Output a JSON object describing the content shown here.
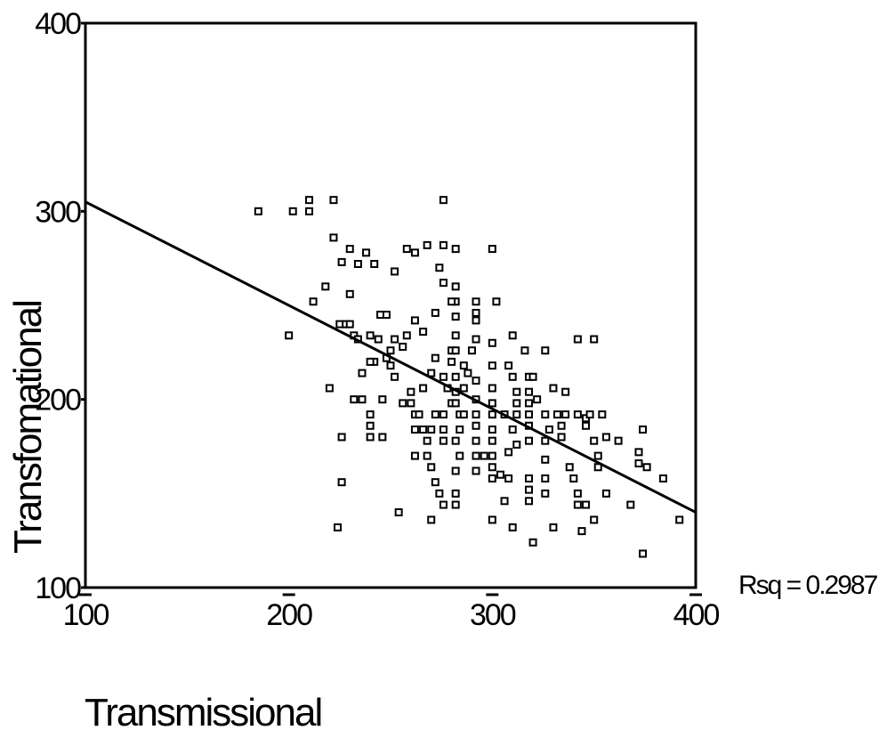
{
  "chart_data": {
    "type": "scatter",
    "title": "",
    "xlabel": "Transmissional",
    "ylabel": "Transfomational",
    "xlim": [
      100,
      400
    ],
    "ylim": [
      100,
      400
    ],
    "x_ticks": [
      100,
      200,
      300,
      400
    ],
    "y_ticks": [
      100,
      200,
      300,
      400
    ],
    "grid": false,
    "annotation": "Rsq = 0.2987",
    "fit_line": {
      "x": [
        100,
        400
      ],
      "y": [
        305,
        140
      ]
    },
    "points": [
      [
        185,
        300
      ],
      [
        202,
        300
      ],
      [
        210,
        300
      ],
      [
        210,
        306
      ],
      [
        222,
        306
      ],
      [
        200,
        234
      ],
      [
        212,
        252
      ],
      [
        218,
        260
      ],
      [
        222,
        286
      ],
      [
        226,
        273
      ],
      [
        230,
        280
      ],
      [
        225,
        240
      ],
      [
        228,
        240
      ],
      [
        230,
        240
      ],
      [
        230,
        256
      ],
      [
        232,
        234
      ],
      [
        234,
        272
      ],
      [
        238,
        278
      ],
      [
        242,
        272
      ],
      [
        240,
        234
      ],
      [
        245,
        245
      ],
      [
        248,
        245
      ],
      [
        252,
        268
      ],
      [
        258,
        280
      ],
      [
        262,
        278
      ],
      [
        268,
        282
      ],
      [
        276,
        282
      ],
      [
        282,
        280
      ],
      [
        274,
        270
      ],
      [
        276,
        306
      ],
      [
        300,
        280
      ],
      [
        276,
        262
      ],
      [
        282,
        260
      ],
      [
        282,
        252
      ],
      [
        280,
        252
      ],
      [
        292,
        252
      ],
      [
        302,
        252
      ],
      [
        292,
        246
      ],
      [
        292,
        242
      ],
      [
        282,
        244
      ],
      [
        272,
        246
      ],
      [
        262,
        242
      ],
      [
        266,
        236
      ],
      [
        258,
        234
      ],
      [
        252,
        232
      ],
      [
        256,
        228
      ],
      [
        250,
        226
      ],
      [
        248,
        222
      ],
      [
        242,
        220
      ],
      [
        240,
        220
      ],
      [
        244,
        232
      ],
      [
        234,
        232
      ],
      [
        236,
        214
      ],
      [
        220,
        206
      ],
      [
        232,
        200
      ],
      [
        236,
        200
      ],
      [
        240,
        192
      ],
      [
        240,
        186
      ],
      [
        240,
        180
      ],
      [
        246,
        180
      ],
      [
        246,
        200
      ],
      [
        250,
        218
      ],
      [
        252,
        212
      ],
      [
        260,
        204
      ],
      [
        260,
        198
      ],
      [
        262,
        192
      ],
      [
        262,
        184
      ],
      [
        266,
        184
      ],
      [
        266,
        206
      ],
      [
        270,
        214
      ],
      [
        272,
        222
      ],
      [
        276,
        212
      ],
      [
        278,
        206
      ],
      [
        280,
        198
      ],
      [
        282,
        204
      ],
      [
        282,
        212
      ],
      [
        280,
        226
      ],
      [
        282,
        226
      ],
      [
        282,
        234
      ],
      [
        290,
        226
      ],
      [
        292,
        232
      ],
      [
        300,
        230
      ],
      [
        300,
        218
      ],
      [
        300,
        206
      ],
      [
        300,
        198
      ],
      [
        300,
        192
      ],
      [
        300,
        184
      ],
      [
        300,
        178
      ],
      [
        300,
        170
      ],
      [
        300,
        164
      ],
      [
        300,
        158
      ],
      [
        292,
        210
      ],
      [
        292,
        200
      ],
      [
        292,
        192
      ],
      [
        292,
        186
      ],
      [
        292,
        178
      ],
      [
        292,
        170
      ],
      [
        292,
        162
      ],
      [
        284,
        192
      ],
      [
        284,
        184
      ],
      [
        282,
        178
      ],
      [
        284,
        170
      ],
      [
        282,
        162
      ],
      [
        276,
        178
      ],
      [
        276,
        184
      ],
      [
        276,
        192
      ],
      [
        272,
        192
      ],
      [
        270,
        184
      ],
      [
        268,
        178
      ],
      [
        268,
        170
      ],
      [
        270,
        164
      ],
      [
        272,
        156
      ],
      [
        274,
        150
      ],
      [
        276,
        144
      ],
      [
        282,
        150
      ],
      [
        282,
        144
      ],
      [
        286,
        192
      ],
      [
        282,
        198
      ],
      [
        262,
        170
      ],
      [
        254,
        140
      ],
      [
        270,
        136
      ],
      [
        300,
        136
      ],
      [
        226,
        180
      ],
      [
        226,
        156
      ],
      [
        224,
        132
      ],
      [
        310,
        234
      ],
      [
        308,
        218
      ],
      [
        310,
        212
      ],
      [
        312,
        204
      ],
      [
        312,
        198
      ],
      [
        312,
        192
      ],
      [
        306,
        192
      ],
      [
        310,
        184
      ],
      [
        308,
        172
      ],
      [
        308,
        158
      ],
      [
        306,
        146
      ],
      [
        310,
        132
      ],
      [
        316,
        226
      ],
      [
        318,
        212
      ],
      [
        318,
        204
      ],
      [
        318,
        198
      ],
      [
        318,
        192
      ],
      [
        318,
        186
      ],
      [
        318,
        178
      ],
      [
        318,
        158
      ],
      [
        318,
        152
      ],
      [
        318,
        146
      ],
      [
        320,
        124
      ],
      [
        326,
        226
      ],
      [
        322,
        200
      ],
      [
        326,
        192
      ],
      [
        328,
        184
      ],
      [
        326,
        178
      ],
      [
        326,
        168
      ],
      [
        326,
        158
      ],
      [
        326,
        150
      ],
      [
        330,
        206
      ],
      [
        332,
        192
      ],
      [
        334,
        186
      ],
      [
        334,
        180
      ],
      [
        336,
        204
      ],
      [
        336,
        192
      ],
      [
        338,
        164
      ],
      [
        340,
        158
      ],
      [
        342,
        150
      ],
      [
        342,
        144
      ],
      [
        346,
        144
      ],
      [
        344,
        130
      ],
      [
        342,
        232
      ],
      [
        342,
        192
      ],
      [
        346,
        186
      ],
      [
        346,
        190
      ],
      [
        348,
        192
      ],
      [
        350,
        232
      ],
      [
        350,
        178
      ],
      [
        352,
        170
      ],
      [
        352,
        164
      ],
      [
        354,
        192
      ],
      [
        356,
        180
      ],
      [
        356,
        150
      ],
      [
        350,
        136
      ],
      [
        362,
        178
      ],
      [
        368,
        144
      ],
      [
        372,
        172
      ],
      [
        372,
        166
      ],
      [
        374,
        118
      ],
      [
        374,
        184
      ],
      [
        376,
        164
      ],
      [
        384,
        158
      ],
      [
        392,
        136
      ],
      [
        330,
        132
      ],
      [
        320,
        212
      ],
      [
        312,
        176
      ],
      [
        304,
        160
      ],
      [
        296,
        170
      ],
      [
        288,
        214
      ],
      [
        286,
        206
      ],
      [
        286,
        218
      ],
      [
        280,
        220
      ],
      [
        264,
        192
      ],
      [
        256,
        198
      ]
    ]
  }
}
